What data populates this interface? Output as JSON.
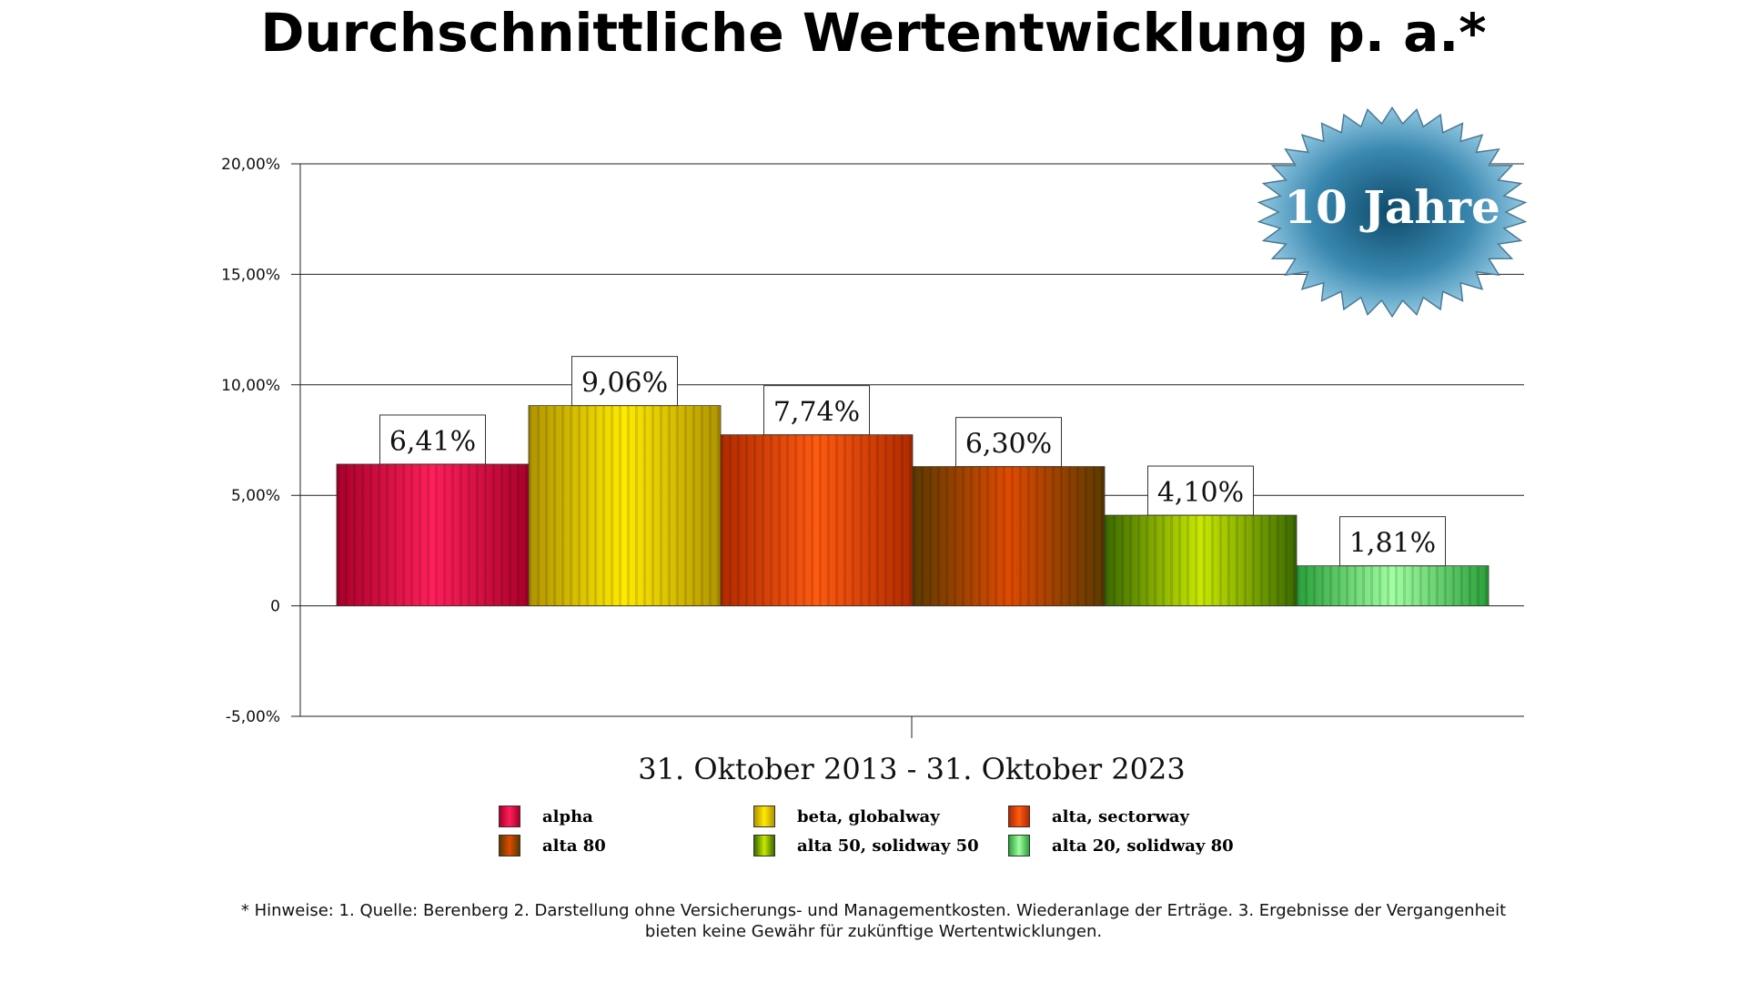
{
  "chart_data": {
    "type": "bar",
    "title": "Durchschnittliche Wertentwicklung p. a.*",
    "xlabel": "31. Oktober 2013 - 31. Oktober 2023",
    "ylabel": "",
    "ylim": [
      -5,
      20
    ],
    "yticks": [
      {
        "value": 20,
        "label": "20,00%"
      },
      {
        "value": 15,
        "label": "15,00%"
      },
      {
        "value": 10,
        "label": "10,00%"
      },
      {
        "value": 5,
        "label": "5,00%"
      },
      {
        "value": 0,
        "label": "0"
      },
      {
        "value": -5,
        "label": "-5,00%"
      }
    ],
    "grid": true,
    "legend_position": "bottom",
    "series": [
      {
        "name": "alpha",
        "value": 6.41,
        "label": "6,41%",
        "colors": [
          "#a8002a",
          "#ff1f5a"
        ]
      },
      {
        "name": "beta, globalway",
        "value": 9.06,
        "label": "9,06%",
        "colors": [
          "#b09400",
          "#ffea00"
        ]
      },
      {
        "name": "alta, sectorway",
        "value": 7.74,
        "label": "7,74%",
        "colors": [
          "#b02a00",
          "#ff5a10"
        ]
      },
      {
        "name": "alta 80",
        "value": 6.3,
        "label": "6,30%",
        "colors": [
          "#5a3a00",
          "#e04a00"
        ]
      },
      {
        "name": "alta 50, solidway 50",
        "value": 4.1,
        "label": "4,10%",
        "colors": [
          "#3a6a00",
          "#c8e800"
        ]
      },
      {
        "name": "alta 20, solidway 80",
        "value": 1.81,
        "label": "1,81%",
        "colors": [
          "#2aa03a",
          "#a0ffa0"
        ]
      }
    ],
    "badge": "10 Jahre"
  },
  "footnote": {
    "line1": "* Hinweise: 1. Quelle: Berenberg  2. Darstellung ohne Versicherungs- und Managementkosten. Wiederanlage der Erträge.  3. Ergebnisse der Vergangenheit",
    "line2": "bieten keine Gewähr für zukünftige Wertentwicklungen."
  }
}
